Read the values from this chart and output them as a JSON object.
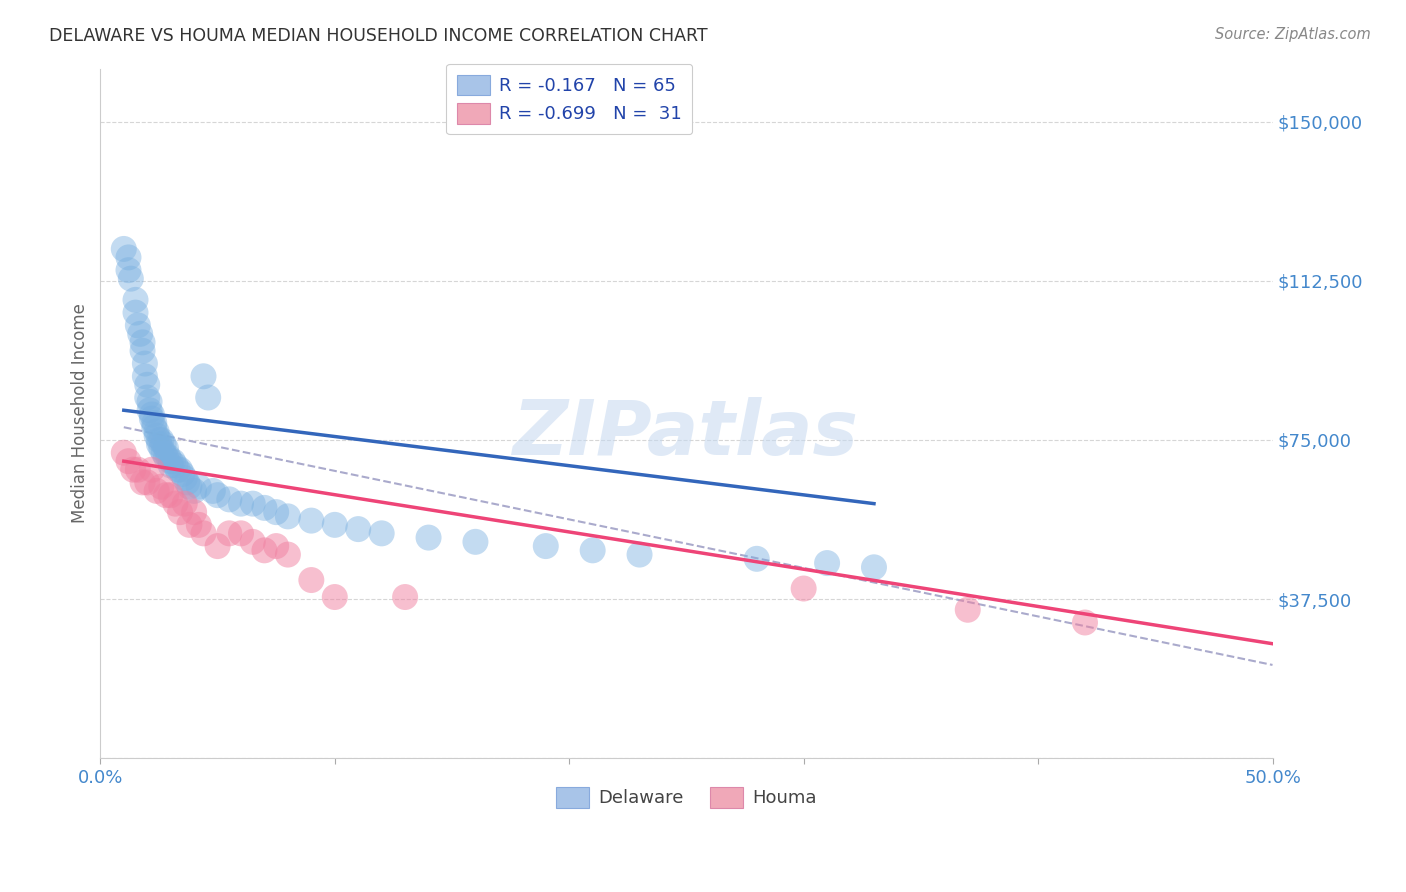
{
  "title": "DELAWARE VS HOUMA MEDIAN HOUSEHOLD INCOME CORRELATION CHART",
  "source": "Source: ZipAtlas.com",
  "ylabel": "Median Household Income",
  "yticks": [
    0,
    37500,
    75000,
    112500,
    150000
  ],
  "ytick_labels": [
    "",
    "$37,500",
    "$75,000",
    "$112,500",
    "$150,000"
  ],
  "xlim": [
    0.0,
    0.5
  ],
  "ylim": [
    0,
    162500
  ],
  "legend_label1": "R = -0.167   N = 65",
  "legend_label2": "R = -0.699   N =  31",
  "legend_color1": "#a8c4e8",
  "legend_color2": "#f0a8b8",
  "watermark": "ZIPatlas",
  "background_color": "#ffffff",
  "grid_color": "#cccccc",
  "delaware_color": "#7ab0e0",
  "houma_color": "#f080a0",
  "delaware_line_color": "#3366bb",
  "houma_line_color": "#ee4477",
  "combined_line_color": "#aaaacc",
  "title_color": "#333333",
  "source_color": "#888888",
  "yaxis_label_color": "#4488cc",
  "xaxis_label_color": "#4488cc",
  "delaware_scatter_x": [
    0.01,
    0.012,
    0.012,
    0.013,
    0.015,
    0.015,
    0.016,
    0.017,
    0.018,
    0.018,
    0.019,
    0.019,
    0.02,
    0.02,
    0.021,
    0.021,
    0.022,
    0.022,
    0.023,
    0.023,
    0.024,
    0.024,
    0.025,
    0.025,
    0.026,
    0.026,
    0.027,
    0.027,
    0.028,
    0.028,
    0.029,
    0.03,
    0.03,
    0.031,
    0.032,
    0.033,
    0.034,
    0.035,
    0.036,
    0.037,
    0.038,
    0.04,
    0.042,
    0.044,
    0.046,
    0.048,
    0.05,
    0.055,
    0.06,
    0.065,
    0.07,
    0.075,
    0.08,
    0.09,
    0.1,
    0.11,
    0.12,
    0.14,
    0.16,
    0.19,
    0.21,
    0.23,
    0.28,
    0.31,
    0.33
  ],
  "delaware_scatter_y": [
    120000,
    115000,
    118000,
    113000,
    108000,
    105000,
    102000,
    100000,
    98000,
    96000,
    93000,
    90000,
    88000,
    85000,
    84000,
    82000,
    81000,
    80000,
    79000,
    78000,
    77000,
    76000,
    75000,
    74000,
    75000,
    73000,
    74000,
    72000,
    73000,
    71000,
    71000,
    70000,
    69000,
    70000,
    69000,
    68000,
    68000,
    67000,
    66000,
    65000,
    64000,
    63000,
    64000,
    90000,
    85000,
    63000,
    62000,
    61000,
    60000,
    60000,
    59000,
    58000,
    57000,
    56000,
    55000,
    54000,
    53000,
    52000,
    51000,
    50000,
    49000,
    48000,
    47000,
    46000,
    45000
  ],
  "houma_scatter_x": [
    0.01,
    0.012,
    0.014,
    0.016,
    0.018,
    0.02,
    0.022,
    0.024,
    0.026,
    0.028,
    0.03,
    0.032,
    0.034,
    0.036,
    0.038,
    0.04,
    0.042,
    0.044,
    0.05,
    0.055,
    0.06,
    0.065,
    0.07,
    0.075,
    0.08,
    0.09,
    0.1,
    0.13,
    0.3,
    0.37,
    0.42
  ],
  "houma_scatter_y": [
    72000,
    70000,
    68000,
    68000,
    65000,
    65000,
    68000,
    63000,
    64000,
    62000,
    62000,
    60000,
    58000,
    60000,
    55000,
    58000,
    55000,
    53000,
    50000,
    53000,
    53000,
    51000,
    49000,
    50000,
    48000,
    42000,
    38000,
    38000,
    40000,
    35000,
    32000
  ],
  "delaware_trendline_x": [
    0.01,
    0.33
  ],
  "delaware_trendline_y": [
    82000,
    60000
  ],
  "houma_trendline_x": [
    0.01,
    0.5
  ],
  "houma_trendline_y": [
    70000,
    27000
  ],
  "combined_trendline_x": [
    0.01,
    0.5
  ],
  "combined_trendline_y": [
    78000,
    22000
  ]
}
